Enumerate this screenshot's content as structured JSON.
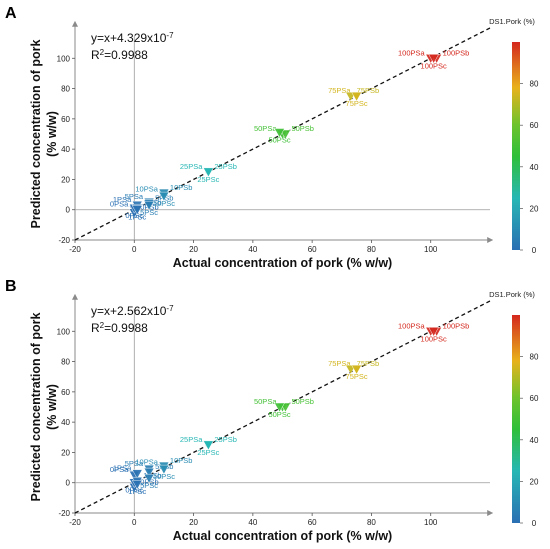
{
  "figure": {
    "panels": [
      {
        "label": "A",
        "equation": "y=x+4.329x10",
        "equation_exp": "-7",
        "r2": "R",
        "r2_sup": "2",
        "r2_value": "=0.9988"
      },
      {
        "label": "B",
        "equation": "y=x+2.562x10",
        "equation_exp": "-7",
        "r2": "R",
        "r2_sup": "2",
        "r2_value": "=0.9988"
      }
    ]
  },
  "chart_data": [
    {
      "type": "scatter",
      "panel": "A",
      "title": "",
      "xlabel": "Actual concentration of pork (% w/w)",
      "ylabel": "Predicted concentration of pork (% w/w)",
      "xlim": [
        -20,
        120
      ],
      "ylim": [
        -20,
        120
      ],
      "xticks": [
        -20,
        0,
        20,
        40,
        60,
        80,
        100
      ],
      "yticks": [
        -20,
        0,
        20,
        40,
        60,
        80,
        100
      ],
      "fit_line": {
        "slope": 1,
        "intercept": 4.329e-07,
        "style": "dashed"
      },
      "colorbar": {
        "title": "DS1.Pork (%)",
        "range": [
          0,
          100
        ],
        "ticks": [
          0,
          20,
          40,
          60,
          80
        ]
      },
      "points": [
        {
          "x": 0,
          "y": 0,
          "label": "0PSa"
        },
        {
          "x": 0,
          "y": -2,
          "label": "0PSb"
        },
        {
          "x": 0,
          "y": 1,
          "label": "0PSc"
        },
        {
          "x": 1,
          "y": 3,
          "label": "1PSa"
        },
        {
          "x": 1,
          "y": 1,
          "label": "1PSb"
        },
        {
          "x": 1,
          "y": 0,
          "label": "1PSc"
        },
        {
          "x": 5,
          "y": 5,
          "label": "5PSa"
        },
        {
          "x": 5,
          "y": 4,
          "label": "5PSb"
        },
        {
          "x": 5,
          "y": 3,
          "label": "5PSc"
        },
        {
          "x": 10,
          "y": 10,
          "label": "10PSa"
        },
        {
          "x": 10,
          "y": 11,
          "label": "10PSb"
        },
        {
          "x": 10,
          "y": 9,
          "label": "10PSc"
        },
        {
          "x": 25,
          "y": 25,
          "label": "25PSa"
        },
        {
          "x": 25,
          "y": 25,
          "label": "25PSb"
        },
        {
          "x": 25,
          "y": 25,
          "label": "25PSc"
        },
        {
          "x": 50,
          "y": 50,
          "label": "50PSa"
        },
        {
          "x": 51,
          "y": 50,
          "label": "50PSb"
        },
        {
          "x": 49,
          "y": 51,
          "label": "50PSc"
        },
        {
          "x": 75,
          "y": 75,
          "label": "75PSa"
        },
        {
          "x": 73,
          "y": 75,
          "label": "75PSb"
        },
        {
          "x": 75,
          "y": 75,
          "label": "75PSc"
        },
        {
          "x": 100,
          "y": 100,
          "label": "100PSa"
        },
        {
          "x": 102,
          "y": 100,
          "label": "100PSb"
        },
        {
          "x": 101,
          "y": 100,
          "label": "100PSc"
        }
      ]
    },
    {
      "type": "scatter",
      "panel": "B",
      "title": "",
      "xlabel": "Actual concentration of pork (% w/w)",
      "ylabel": "Predicted concentration of pork (% w/w)",
      "xlim": [
        -20,
        120
      ],
      "ylim": [
        -20,
        120
      ],
      "xticks": [
        -20,
        0,
        20,
        40,
        60,
        80,
        100
      ],
      "yticks": [
        -20,
        0,
        20,
        40,
        60,
        80,
        100
      ],
      "fit_line": {
        "slope": 1,
        "intercept": 2.562e-07,
        "style": "dashed"
      },
      "colorbar": {
        "title": "DS1.Pork (%)",
        "range": [
          0,
          100
        ],
        "ticks": [
          0,
          20,
          40,
          60,
          80
        ]
      },
      "points": [
        {
          "x": 0,
          "y": 5,
          "label": "0PSa"
        },
        {
          "x": 0,
          "y": -3,
          "label": "0PSb"
        },
        {
          "x": 0,
          "y": 0,
          "label": "0PSc"
        },
        {
          "x": 1,
          "y": 6,
          "label": "1PSa"
        },
        {
          "x": 1,
          "y": 1,
          "label": "1PSb"
        },
        {
          "x": 1,
          "y": -1,
          "label": "1PSc"
        },
        {
          "x": 5,
          "y": 9,
          "label": "5PSa"
        },
        {
          "x": 5,
          "y": 7,
          "label": "5PSb"
        },
        {
          "x": 5,
          "y": 3,
          "label": "5PSc"
        },
        {
          "x": 10,
          "y": 10,
          "label": "10PSa"
        },
        {
          "x": 10,
          "y": 11,
          "label": "10PSb"
        },
        {
          "x": 10,
          "y": 9,
          "label": "10PSc"
        },
        {
          "x": 25,
          "y": 25,
          "label": "25PSa"
        },
        {
          "x": 25,
          "y": 25,
          "label": "25PSb"
        },
        {
          "x": 25,
          "y": 25,
          "label": "25PSc"
        },
        {
          "x": 50,
          "y": 50,
          "label": "50PSa"
        },
        {
          "x": 51,
          "y": 50,
          "label": "50PSb"
        },
        {
          "x": 49,
          "y": 50,
          "label": "50PSc"
        },
        {
          "x": 75,
          "y": 75,
          "label": "75PSa"
        },
        {
          "x": 73,
          "y": 75,
          "label": "75PSb"
        },
        {
          "x": 75,
          "y": 75,
          "label": "75PSc"
        },
        {
          "x": 100,
          "y": 100,
          "label": "100PSa"
        },
        {
          "x": 102,
          "y": 100,
          "label": "100PSb"
        },
        {
          "x": 101,
          "y": 100,
          "label": "100PSc"
        }
      ]
    }
  ]
}
